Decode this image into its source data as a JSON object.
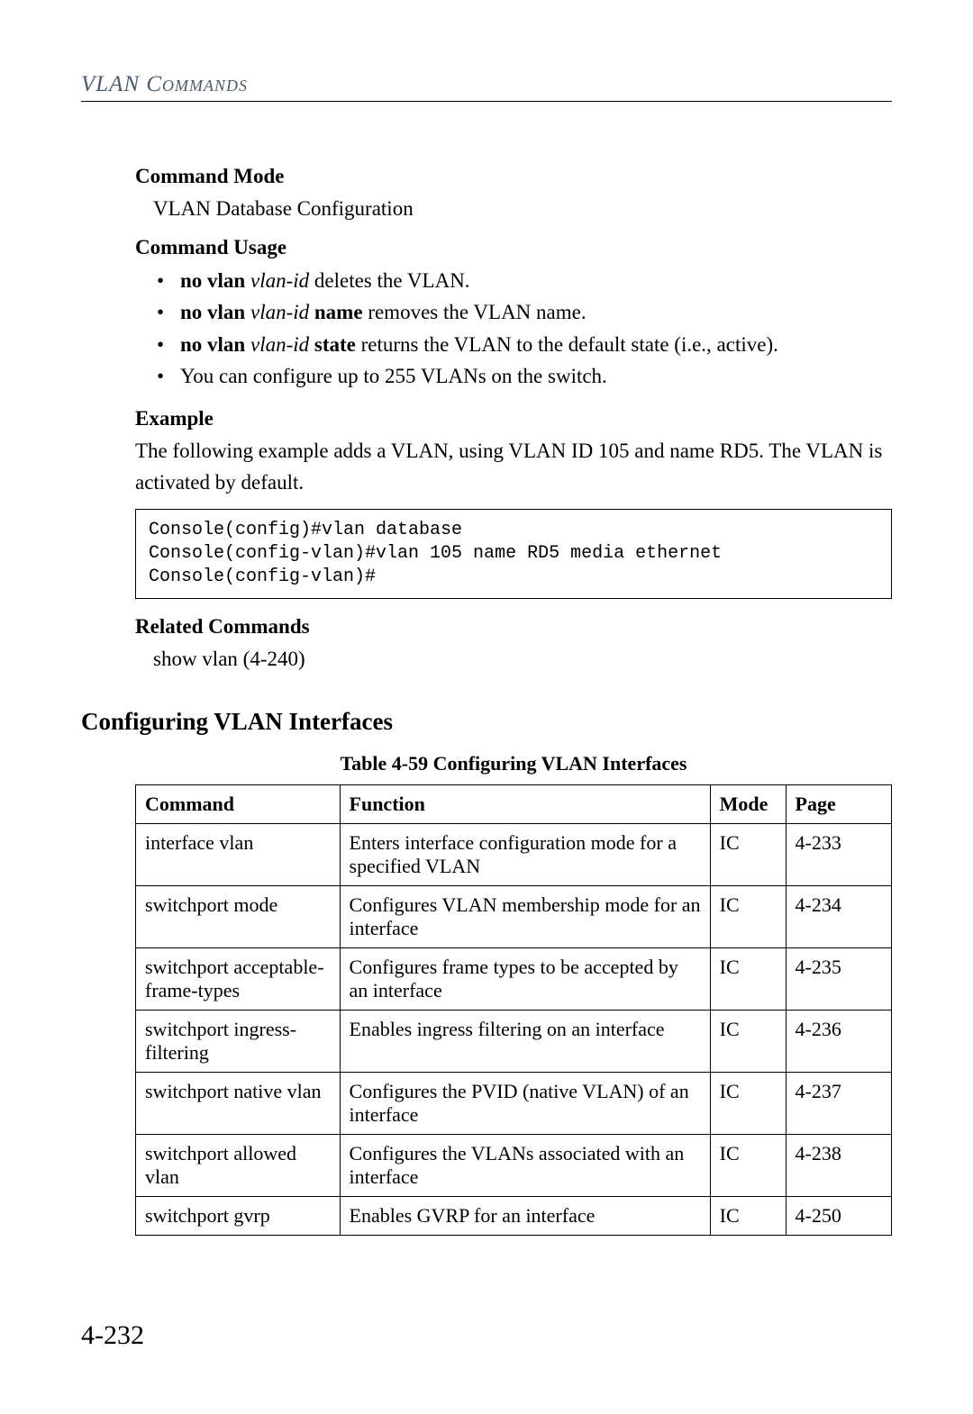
{
  "header": {
    "title": "VLAN Commands"
  },
  "command_mode": {
    "label": "Command Mode",
    "text": "VLAN Database Configuration"
  },
  "command_usage": {
    "label": "Command Usage",
    "bullets": {
      "b0": {
        "prefix": "no vlan ",
        "arg": "vlan-id",
        "suffix": " deletes the VLAN."
      },
      "b1": {
        "prefix": "no vlan ",
        "arg": "vlan-id",
        "mid": " name",
        "suffix": " removes the VLAN name."
      },
      "b2": {
        "prefix": "no vlan ",
        "arg": "vlan-id",
        "mid": " state",
        "suffix": " returns the VLAN to the default state (i.e., active)."
      },
      "b3": {
        "text": "You can configure up to 255 VLANs on the switch."
      }
    }
  },
  "example": {
    "label": "Example",
    "text": "The following example adds a VLAN, using VLAN ID 105 and name RD5. The VLAN is activated by default.",
    "code": "Console(config)#vlan database\nConsole(config-vlan)#vlan 105 name RD5 media ethernet\nConsole(config-vlan)#"
  },
  "related": {
    "label": "Related Commands",
    "text": "show vlan (4-240)"
  },
  "section": {
    "heading": "Configuring VLAN Interfaces"
  },
  "table": {
    "caption": "Table 4-59   Configuring VLAN Interfaces",
    "columns": {
      "c0": "Command",
      "c1": "Function",
      "c2": "Mode",
      "c3": "Page"
    },
    "styling": {
      "border_color": "#000000",
      "header_weight": "bold",
      "font_size_pt": 16,
      "col_widths_pct": [
        27,
        49,
        10,
        14
      ]
    },
    "rows": {
      "r0": {
        "command": "interface vlan",
        "function": "Enters interface configuration mode for a specified VLAN",
        "mode": "IC",
        "page": "4-233"
      },
      "r1": {
        "command": "switchport mode",
        "function": "Configures VLAN membership mode for an interface",
        "mode": "IC",
        "page": "4-234"
      },
      "r2": {
        "command": "switchport acceptable-frame-types",
        "function": "Configures frame types to be accepted by an interface",
        "mode": "IC",
        "page": "4-235"
      },
      "r3": {
        "command": "switchport ingress-filtering",
        "function": "Enables ingress filtering on an interface",
        "mode": "IC",
        "page": "4-236"
      },
      "r4": {
        "command": "switchport native vlan",
        "function": "Configures the PVID (native VLAN) of an interface",
        "mode": "IC",
        "page": "4-237"
      },
      "r5": {
        "command": "switchport allowed vlan",
        "function": "Configures the VLANs associated with an interface",
        "mode": "IC",
        "page": "4-238"
      },
      "r6": {
        "command": "switchport gvrp",
        "function": "Enables GVRP for an interface",
        "mode": "IC",
        "page": "4-250"
      }
    }
  },
  "page_number": "4-232",
  "colors": {
    "text": "#000000",
    "header": "#4a5a6a",
    "background": "#ffffff",
    "border": "#000000"
  },
  "typography": {
    "body_font": "Georgia, Times New Roman, serif",
    "mono_font": "Courier New, monospace",
    "body_size_pt": 17,
    "heading_size_pt": 20,
    "header_size_pt": 18,
    "page_number_size_pt": 22
  }
}
